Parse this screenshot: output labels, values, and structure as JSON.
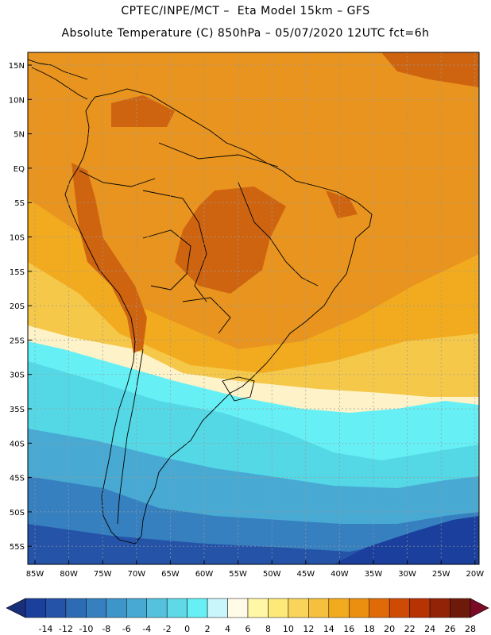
{
  "title_line1": "CPTEC/INPE/MCT –  Eta Model 15km – GFS",
  "title_line2": "Absolute Temperature (C) 850hPa – 05/07/2020 12UTC fct=6h",
  "lat_ticks": [
    "15N",
    "10N",
    "5N",
    "EQ",
    "5S",
    "10S",
    "15S",
    "20S",
    "25S",
    "30S",
    "35S",
    "40S",
    "45S",
    "50S",
    "55S"
  ],
  "lon_ticks": [
    "85W",
    "80W",
    "75W",
    "70W",
    "65W",
    "60W",
    "55W",
    "50W",
    "45W",
    "40W",
    "35W",
    "30W",
    "25W",
    "20W"
  ],
  "colorbar": {
    "labels": [
      "-14",
      "-12",
      "-10",
      "-8",
      "-6",
      "-4",
      "-2",
      "0",
      "2",
      "4",
      "6",
      "8",
      "10",
      "12",
      "14",
      "16",
      "18",
      "20",
      "22",
      "24",
      "26",
      "28"
    ],
    "colors": [
      "#1a3f9c",
      "#2553a8",
      "#2e6bb5",
      "#3680c0",
      "#3e95c9",
      "#48a9d3",
      "#54c2dd",
      "#5fd8e8",
      "#66f0f5",
      "#c8f6fb",
      "#fffbe6",
      "#fff7a6",
      "#fde87a",
      "#fad35a",
      "#f5c03e",
      "#f2ab1f",
      "#eb8f10",
      "#e06a08",
      "#cf4a05",
      "#b63304",
      "#922307",
      "#6e1a0a"
    ],
    "under_color": "#1a2f7a",
    "over_color": "#7a0a28"
  },
  "field_colors": {
    "hot": "#e8941e",
    "very_hot": "#cf6410",
    "warm": "#f2ab1f",
    "mild": "#f5c84a",
    "pale": "#fdf2c8",
    "cyan_light": "#66f0f5",
    "cyan": "#54d8e6",
    "mid_blue": "#48a9d3",
    "blue": "#3680c0",
    "dark_blue": "#2553a8",
    "darkest": "#1a3f9c"
  }
}
